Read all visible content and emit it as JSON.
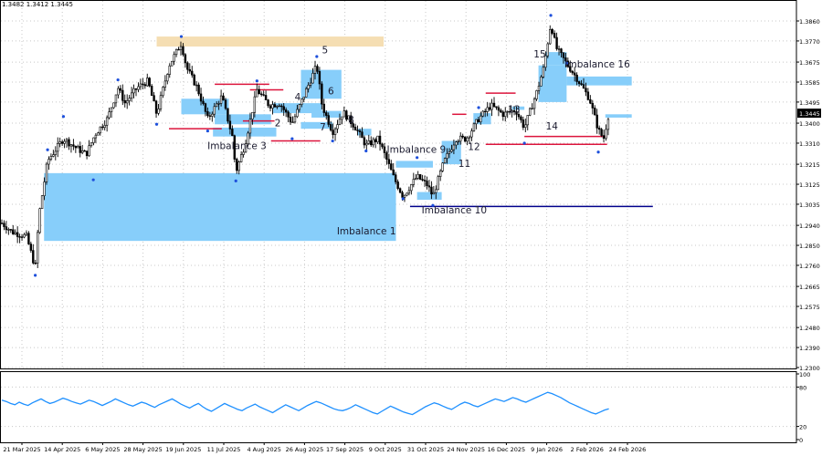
{
  "info_line": "1.3482 1.3412 1.3445",
  "colors": {
    "candle": "#000000",
    "imbalance_zone": "#87cefa",
    "supply_zone": "#f5deb3",
    "level_red": "#dc143c",
    "level_blue": "#00008b",
    "fractal_marker": "#1e50dc",
    "rsi_line": "#1e90ff",
    "current_price_bg": "#000000",
    "grid": "#c8c8c8"
  },
  "chart_data": [
    {
      "type": "candlestick",
      "title": "",
      "x_labels": [
        "21 Mar 2025",
        "14 Apr 2025",
        "6 May 2025",
        "28 May 2025",
        "19 Jun 2025",
        "11 Jul 2025",
        "4 Aug 2025",
        "26 Aug 2025",
        "17 Sep 2025",
        "9 Oct 2025",
        "31 Oct 2025",
        "24 Nov 2025",
        "16 Dec 2025",
        "9 Jan 2026",
        "2 Feb 2026",
        "24 Feb 2026"
      ],
      "y_ticks": [
        "1.3860",
        "1.3770",
        "1.3675",
        "1.3585",
        "1.3495",
        "1.3400",
        "1.3310",
        "1.3215",
        "1.3125",
        "1.3035",
        "1.2940",
        "1.2850",
        "1.2760",
        "1.2665",
        "1.2575",
        "1.2480",
        "1.2390",
        "1.2300"
      ],
      "ylim": [
        1.23,
        1.3905
      ],
      "current_price": "1.3445",
      "price_path": [
        [
          "2025-03-21",
          1.295
        ],
        [
          "2025-03-27",
          1.291
        ],
        [
          "2025-04-04",
          1.289
        ],
        [
          "2025-04-09",
          1.275
        ],
        [
          "2025-04-11",
          1.298
        ],
        [
          "2025-04-16",
          1.323
        ],
        [
          "2025-04-25",
          1.333
        ],
        [
          "2025-05-02",
          1.329
        ],
        [
          "2025-05-08",
          1.326
        ],
        [
          "2025-05-13",
          1.335
        ],
        [
          "2025-05-20",
          1.342
        ],
        [
          "2025-05-26",
          1.356
        ],
        [
          "2025-05-30",
          1.349
        ],
        [
          "2025-06-06",
          1.356
        ],
        [
          "2025-06-12",
          1.359
        ],
        [
          "2025-06-17",
          1.344
        ],
        [
          "2025-06-24",
          1.366
        ],
        [
          "2025-07-01",
          1.376
        ],
        [
          "2025-07-04",
          1.365
        ],
        [
          "2025-07-10",
          1.356
        ],
        [
          "2025-07-16",
          1.342
        ],
        [
          "2025-07-24",
          1.352
        ],
        [
          "2025-07-30",
          1.334
        ],
        [
          "2025-08-01",
          1.318
        ],
        [
          "2025-08-06",
          1.33
        ],
        [
          "2025-08-13",
          1.355
        ],
        [
          "2025-08-20",
          1.348
        ],
        [
          "2025-08-26",
          1.349
        ],
        [
          "2025-09-02",
          1.34
        ],
        [
          "2025-09-09",
          1.353
        ],
        [
          "2025-09-16",
          1.366
        ],
        [
          "2025-09-19",
          1.348
        ],
        [
          "2025-09-25",
          1.336
        ],
        [
          "2025-10-01",
          1.345
        ],
        [
          "2025-10-08",
          1.338
        ],
        [
          "2025-10-14",
          1.33
        ],
        [
          "2025-10-21",
          1.333
        ],
        [
          "2025-10-30",
          1.315
        ],
        [
          "2025-11-04",
          1.307
        ],
        [
          "2025-11-12",
          1.316
        ],
        [
          "2025-11-18",
          1.312
        ],
        [
          "2025-11-21",
          1.307
        ],
        [
          "2025-11-27",
          1.322
        ],
        [
          "2025-12-04",
          1.333
        ],
        [
          "2025-12-10",
          1.333
        ],
        [
          "2025-12-17",
          1.342
        ],
        [
          "2025-12-24",
          1.348
        ],
        [
          "2025-12-31",
          1.344
        ],
        [
          "2026-01-07",
          1.346
        ],
        [
          "2026-01-12",
          1.338
        ],
        [
          "2026-01-19",
          1.354
        ],
        [
          "2026-01-23",
          1.365
        ],
        [
          "2026-01-27",
          1.385
        ],
        [
          "2026-01-30",
          1.374
        ],
        [
          "2026-02-04",
          1.368
        ],
        [
          "2026-02-11",
          1.36
        ],
        [
          "2026-02-18",
          1.351
        ],
        [
          "2026-02-23",
          1.337
        ],
        [
          "2026-02-26",
          1.333
        ],
        [
          "2026-03-01",
          1.3445
        ]
      ],
      "imbalance_zones": [
        {
          "label": "Imbalance 1",
          "from": "2025-04-14",
          "to": "2025-10-31",
          "low": 1.287,
          "high": 1.3175
        },
        {
          "label": "Imbalance 3",
          "from": "2025-07-19",
          "to": "2025-08-24",
          "low": 1.334,
          "high": 1.338
        },
        {
          "label": "",
          "from": "2025-07-01",
          "to": "2025-07-28",
          "low": 1.344,
          "high": 1.351
        },
        {
          "label": "2",
          "from": "2025-07-20",
          "to": "2025-08-21",
          "low": 1.3395,
          "high": 1.344
        },
        {
          "label": "4",
          "from": "2025-08-22",
          "to": "2025-09-19",
          "low": 1.3445,
          "high": 1.349
        },
        {
          "label": "5",
          "from": "2025-09-07",
          "to": "2025-09-30",
          "low": 1.351,
          "high": 1.364
        },
        {
          "label": "6",
          "from": "2025-09-13",
          "to": "2025-09-30",
          "low": 1.3425,
          "high": 1.3455
        },
        {
          "label": "7",
          "from": "2025-09-07",
          "to": "2025-09-25",
          "low": 1.3375,
          "high": 1.3405
        },
        {
          "label": "8",
          "from": "2025-10-09",
          "to": "2025-10-17",
          "low": 1.3345,
          "high": 1.3375
        },
        {
          "label": "Imbalance 9",
          "from": "2025-10-31",
          "to": "2025-11-21",
          "low": 1.32,
          "high": 1.323
        },
        {
          "label": "Imbalance 10",
          "from": "2025-11-12",
          "to": "2025-11-26",
          "low": 1.3055,
          "high": 1.309
        },
        {
          "label": "11",
          "from": "2025-11-26",
          "to": "2025-12-07",
          "low": 1.3215,
          "high": 1.332
        },
        {
          "label": "12",
          "from": "2025-12-14",
          "to": "2025-12-24",
          "low": 1.3395,
          "high": 1.3445
        },
        {
          "label": "13",
          "from": "2026-01-05",
          "to": "2026-01-12",
          "low": 1.346,
          "high": 1.3475
        },
        {
          "label": "14",
          "from": "2026-01-20",
          "to": "2026-02-05",
          "low": 1.3495,
          "high": 1.366
        },
        {
          "label": "15",
          "from": "2026-01-24",
          "to": "2026-02-05",
          "low": 1.366,
          "high": 1.372
        },
        {
          "label": "Imbalance 16",
          "from": "2026-02-05",
          "to": "2026-03-14",
          "low": 1.357,
          "high": 1.361
        },
        {
          "label": "",
          "from": "2026-02-27",
          "to": "2026-03-14",
          "low": 1.3425,
          "high": 1.344
        }
      ],
      "supply_zones": [
        {
          "from": "2025-06-17",
          "to": "2025-10-24",
          "low": 1.3745,
          "high": 1.379
        }
      ],
      "levels": [
        {
          "color": "red",
          "from": "2025-06-24",
          "to": "2025-07-24",
          "price": 1.3375
        },
        {
          "color": "red",
          "from": "2025-07-20",
          "to": "2025-08-20",
          "price": 1.3575
        },
        {
          "color": "red",
          "from": "2025-08-09",
          "to": "2025-08-28",
          "price": 1.355
        },
        {
          "color": "red",
          "from": "2025-08-05",
          "to": "2025-08-23",
          "price": 1.341
        },
        {
          "color": "red",
          "from": "2025-08-21",
          "to": "2025-09-18",
          "price": 1.332
        },
        {
          "color": "red",
          "from": "2025-12-02",
          "to": "2025-12-10",
          "price": 1.344
        },
        {
          "color": "red",
          "from": "2025-12-21",
          "to": "2026-01-07",
          "price": 1.3535
        },
        {
          "color": "red",
          "from": "2025-12-21",
          "to": "2026-02-28",
          "price": 1.3305
        },
        {
          "color": "red",
          "from": "2026-01-12",
          "to": "2026-02-28",
          "price": 1.334
        },
        {
          "color": "blue",
          "from": "2025-11-08",
          "to": "2026-03-26",
          "price": 1.3025
        }
      ],
      "fractal_markers": [
        {
          "date": "2025-04-09",
          "price": 1.2715
        },
        {
          "date": "2025-04-16",
          "price": 1.328
        },
        {
          "date": "2025-04-25",
          "price": 1.343
        },
        {
          "date": "2025-05-12",
          "price": 1.3145
        },
        {
          "date": "2025-05-26",
          "price": 1.3595
        },
        {
          "date": "2025-06-17",
          "price": 1.3395
        },
        {
          "date": "2025-07-01",
          "price": 1.379
        },
        {
          "date": "2025-07-16",
          "price": 1.3365
        },
        {
          "date": "2025-08-01",
          "price": 1.314
        },
        {
          "date": "2025-08-13",
          "price": 1.359
        },
        {
          "date": "2025-09-02",
          "price": 1.333
        },
        {
          "date": "2025-09-16",
          "price": 1.37
        },
        {
          "date": "2025-09-25",
          "price": 1.332
        },
        {
          "date": "2025-10-14",
          "price": 1.3275
        },
        {
          "date": "2025-11-04",
          "price": 1.306
        },
        {
          "date": "2025-11-12",
          "price": 1.3245
        },
        {
          "date": "2025-11-21",
          "price": 1.303
        },
        {
          "date": "2025-12-17",
          "price": 1.347
        },
        {
          "date": "2026-01-12",
          "price": 1.331
        },
        {
          "date": "2026-01-27",
          "price": 1.3885
        },
        {
          "date": "2026-02-05",
          "price": 1.367
        },
        {
          "date": "2026-02-23",
          "price": 1.327
        }
      ]
    },
    {
      "type": "line",
      "title": "",
      "y_ticks": [
        "100",
        "80",
        "20",
        "0"
      ],
      "ylim": [
        0,
        100
      ],
      "series": [
        {
          "name": "",
          "values": [
            60,
            58,
            55,
            53,
            57,
            54,
            52,
            56,
            59,
            62,
            58,
            55,
            57,
            60,
            63,
            61,
            58,
            56,
            54,
            57,
            60,
            58,
            55,
            52,
            55,
            58,
            62,
            59,
            56,
            53,
            51,
            54,
            57,
            55,
            52,
            49,
            53,
            56,
            59,
            62,
            58,
            54,
            51,
            48,
            52,
            55,
            50,
            46,
            43,
            47,
            51,
            55,
            52,
            49,
            46,
            44,
            48,
            51,
            54,
            50,
            47,
            44,
            41,
            45,
            49,
            53,
            50,
            47,
            44,
            48,
            52,
            55,
            58,
            56,
            53,
            50,
            47,
            45,
            44,
            46,
            49,
            53,
            50,
            47,
            44,
            41,
            39,
            43,
            47,
            51,
            48,
            45,
            42,
            40,
            38,
            42,
            46,
            50,
            53,
            56,
            54,
            51,
            48,
            46,
            50,
            54,
            57,
            55,
            52,
            50,
            53,
            56,
            59,
            62,
            60,
            58,
            61,
            64,
            62,
            59,
            57,
            60,
            63,
            66,
            69,
            72,
            70,
            67,
            64,
            60,
            56,
            53,
            50,
            47,
            44,
            41,
            39,
            42,
            45,
            47
          ]
        }
      ]
    }
  ]
}
